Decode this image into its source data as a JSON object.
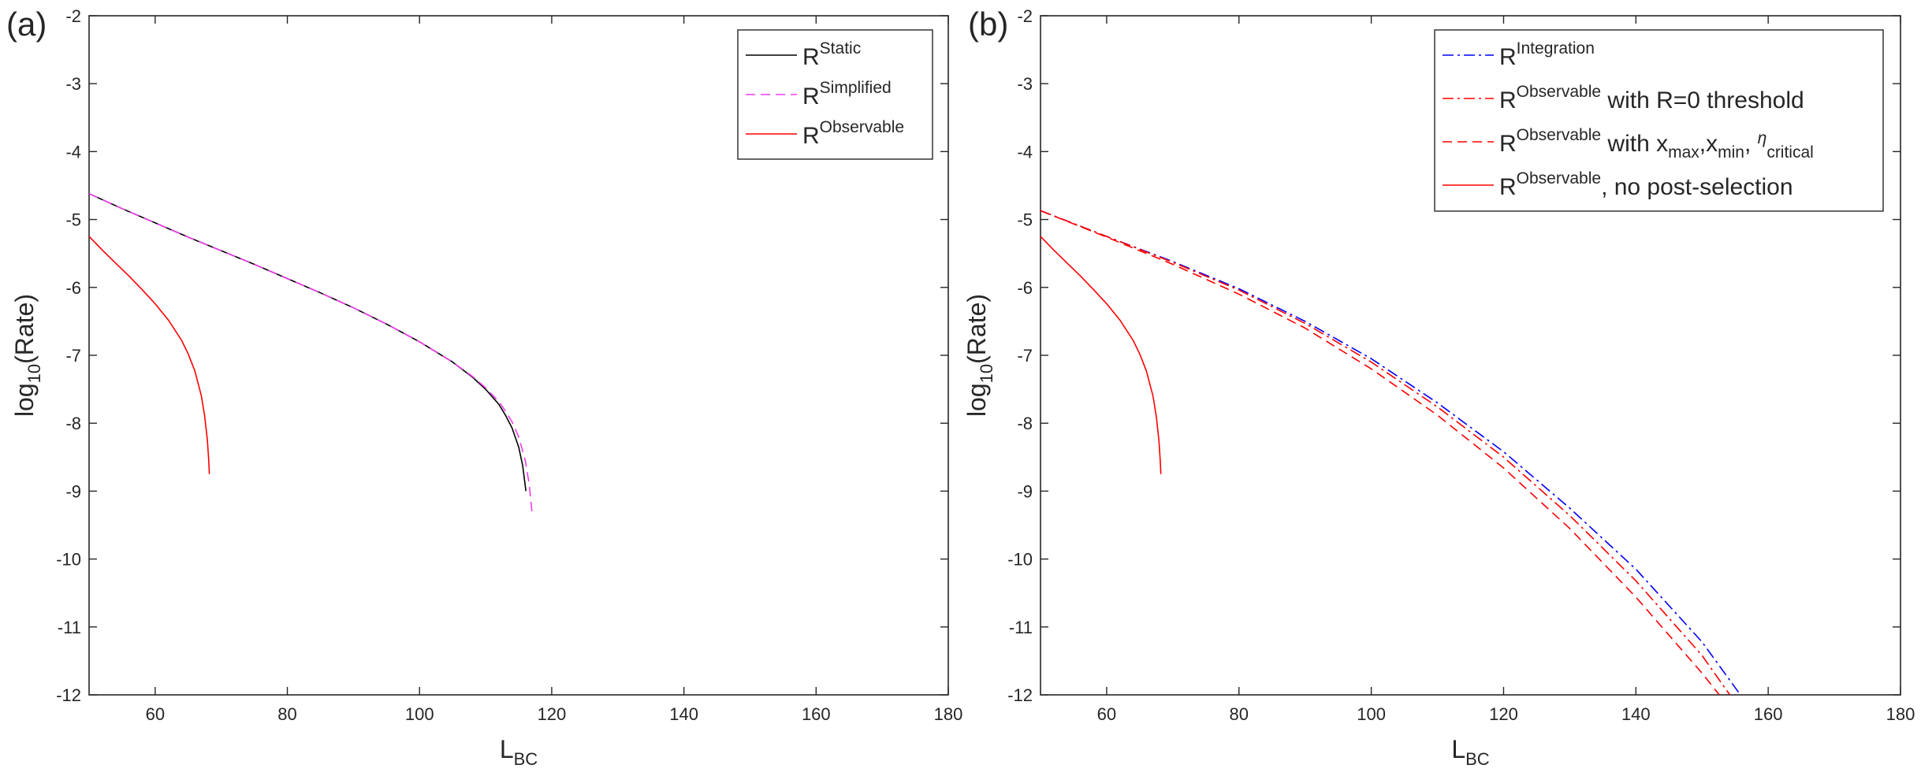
{
  "figure": {
    "background": "#ffffff",
    "axis_color": "#262626"
  },
  "chart_data": [
    {
      "type": "line",
      "panel_label": "(a)",
      "xlabel": "L",
      "xlabel_sub": "BC",
      "ylabel": "log",
      "ylabel_sub": "10",
      "ylabel_rest": "(Rate)",
      "xlim": [
        50,
        180
      ],
      "ylim": [
        -12,
        -2
      ],
      "xticks": [
        60,
        80,
        100,
        120,
        140,
        160,
        180
      ],
      "yticks": [
        -2,
        -3,
        -4,
        -5,
        -6,
        -7,
        -8,
        -9,
        -10,
        -11,
        -12
      ],
      "grid": false,
      "legend_position": "top-right",
      "series": [
        {
          "name": "R",
          "name_sup": "Static",
          "color": "#000000",
          "dash": "solid",
          "x": [
            50,
            55,
            60,
            65,
            70,
            75,
            80,
            85,
            90,
            95,
            100,
            105,
            108,
            110,
            112,
            113,
            114,
            115,
            115.6,
            116.1
          ],
          "y": [
            -4.62,
            -4.84,
            -5.05,
            -5.26,
            -5.46,
            -5.66,
            -5.87,
            -6.08,
            -6.3,
            -6.54,
            -6.8,
            -7.1,
            -7.32,
            -7.5,
            -7.72,
            -7.88,
            -8.07,
            -8.35,
            -8.62,
            -9.0
          ]
        },
        {
          "name": "R",
          "name_sup": "Simplified",
          "color": "#ee3bee",
          "dash": "dashed",
          "x": [
            50,
            55,
            60,
            65,
            70,
            75,
            80,
            85,
            90,
            95,
            100,
            105,
            108,
            110,
            112,
            113,
            114,
            115,
            116,
            116.6,
            117
          ],
          "y": [
            -4.62,
            -4.84,
            -5.05,
            -5.26,
            -5.46,
            -5.66,
            -5.87,
            -6.08,
            -6.3,
            -6.54,
            -6.8,
            -7.1,
            -7.31,
            -7.48,
            -7.68,
            -7.82,
            -7.98,
            -8.2,
            -8.55,
            -8.9,
            -9.3
          ]
        },
        {
          "name": "R",
          "name_sup": "Observable",
          "color": "#ff0000",
          "dash": "solid",
          "x": [
            50,
            52,
            54,
            56,
            58,
            60,
            62,
            64,
            65,
            66,
            67,
            67.5,
            67.9,
            68.1,
            68.2
          ],
          "y": [
            -5.25,
            -5.45,
            -5.64,
            -5.83,
            -6.03,
            -6.24,
            -6.48,
            -6.78,
            -6.98,
            -7.23,
            -7.6,
            -7.9,
            -8.25,
            -8.55,
            -8.75
          ]
        }
      ]
    },
    {
      "type": "line",
      "panel_label": "(b)",
      "xlabel": "L",
      "xlabel_sub": "BC",
      "ylabel": "log",
      "ylabel_sub": "10",
      "ylabel_rest": "(Rate)",
      "xlim": [
        50,
        180
      ],
      "ylim": [
        -12,
        -2
      ],
      "xticks": [
        60,
        80,
        100,
        120,
        140,
        160,
        180
      ],
      "yticks": [
        -2,
        -3,
        -4,
        -5,
        -6,
        -7,
        -8,
        -9,
        -10,
        -11,
        -12
      ],
      "grid": false,
      "legend_position": "top-right",
      "series": [
        {
          "name": "R",
          "name_sup": "Integration",
          "name_rest": "",
          "color": "#0000ff",
          "dash": "dashdot",
          "x": [
            50,
            60,
            70,
            80,
            90,
            100,
            110,
            120,
            130,
            140,
            150,
            155.8
          ],
          "y": [
            -4.87,
            -5.25,
            -5.62,
            -6.02,
            -6.5,
            -7.05,
            -7.7,
            -8.42,
            -9.25,
            -10.15,
            -11.22,
            -12.0
          ]
        },
        {
          "name": "R",
          "name_sup": "Observable",
          "name_rest": " with R=0 threshold",
          "color": "#ff0000",
          "dash": "dashdot",
          "x": [
            50,
            60,
            70,
            80,
            90,
            100,
            110,
            120,
            130,
            140,
            150,
            154.2
          ],
          "y": [
            -4.87,
            -5.25,
            -5.63,
            -6.04,
            -6.53,
            -7.1,
            -7.76,
            -8.5,
            -9.36,
            -10.32,
            -11.42,
            -12.0
          ]
        },
        {
          "name": "R",
          "name_sup": "Observable",
          "name_rest": " with x",
          "name_sub1": "max",
          "name_rest2": ",x",
          "name_sub2": "min",
          "name_rest3": ", ",
          "name_eta": "η",
          "name_sub3": "critical",
          "color": "#ff0000",
          "dash": "dashed",
          "x": [
            50,
            60,
            70,
            80,
            90,
            100,
            110,
            120,
            130,
            140,
            150,
            152.6
          ],
          "y": [
            -4.87,
            -5.26,
            -5.66,
            -6.1,
            -6.6,
            -7.2,
            -7.88,
            -8.66,
            -9.55,
            -10.56,
            -11.68,
            -12.0
          ]
        },
        {
          "name": "R",
          "name_sup": "Observable",
          "name_rest": ", no post-selection",
          "color": "#ff0000",
          "dash": "solid",
          "x": [
            50,
            52,
            54,
            56,
            58,
            60,
            62,
            64,
            65,
            66,
            67,
            67.5,
            67.9,
            68.1,
            68.2
          ],
          "y": [
            -5.25,
            -5.45,
            -5.64,
            -5.83,
            -6.03,
            -6.24,
            -6.48,
            -6.78,
            -6.98,
            -7.23,
            -7.6,
            -7.9,
            -8.25,
            -8.55,
            -8.75
          ]
        }
      ]
    }
  ]
}
